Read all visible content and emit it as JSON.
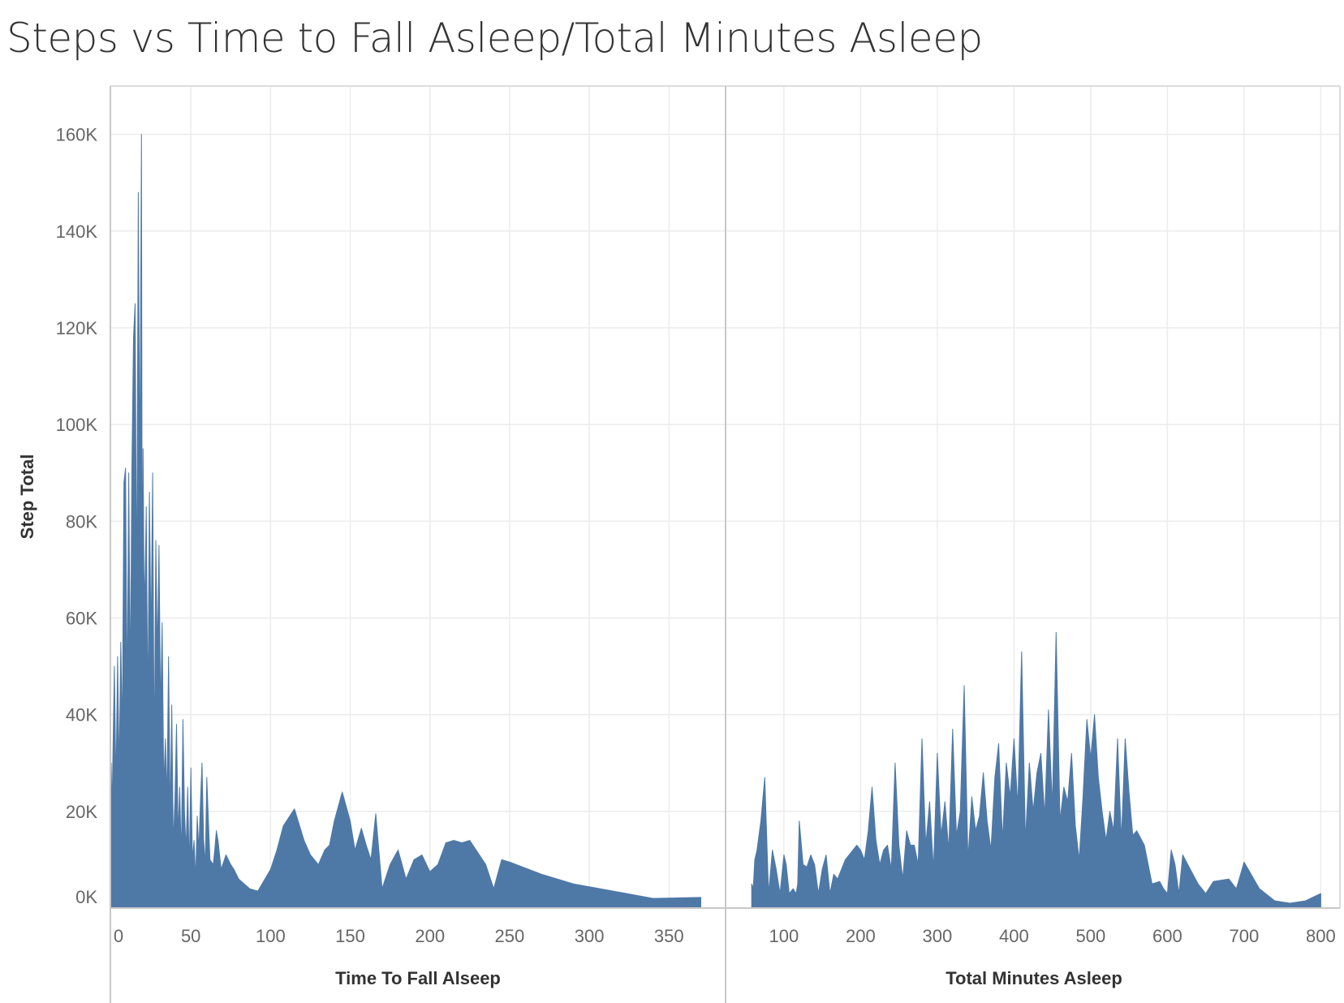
{
  "title": "Steps vs Time to Fall Asleep/Total Minutes Asleep",
  "chart_data": [
    {
      "type": "area",
      "name": "time-to-fall-asleep",
      "xlabel": "Time To Fall Alseep",
      "ylabel": "Step Total",
      "xlim": [
        0,
        385
      ],
      "ylim": [
        0,
        170000
      ],
      "x_ticks": [
        0,
        50,
        100,
        150,
        200,
        250,
        300,
        350
      ],
      "x_tick_labels": [
        "0",
        "50",
        "100",
        "150",
        "200",
        "250",
        "300",
        "350"
      ],
      "y_ticks": [
        0,
        20000,
        40000,
        60000,
        80000,
        100000,
        120000,
        140000,
        160000
      ],
      "y_tick_labels": [
        "0K",
        "20K",
        "40K",
        "60K",
        "80K",
        "100K",
        "120K",
        "140K",
        "160K"
      ],
      "grid": true,
      "color": "#4e79a7",
      "series": [
        {
          "x": [
            0,
            0.5,
            2,
            3,
            4,
            5,
            6,
            7,
            8,
            9,
            10,
            11,
            12,
            13,
            14,
            15,
            16,
            17,
            18,
            19,
            19.5,
            20,
            20.5,
            21,
            22,
            23,
            24,
            25,
            26,
            27,
            28,
            29,
            30,
            31,
            32,
            33,
            34,
            35,
            36,
            37,
            38,
            39,
            40,
            41,
            42,
            43,
            44,
            45,
            46,
            47,
            48,
            49,
            50,
            51,
            52,
            53,
            54,
            55,
            56,
            57,
            58,
            59,
            60,
            61,
            62,
            64,
            65,
            66,
            67,
            69,
            72,
            75,
            77,
            80,
            87,
            92,
            100,
            104,
            108,
            115,
            121,
            125,
            130,
            134,
            137,
            140,
            145,
            150,
            153,
            157,
            160,
            163,
            166,
            170,
            175,
            180,
            185,
            190,
            195,
            200,
            205,
            210,
            215,
            220,
            225,
            235,
            240,
            245,
            250,
            270,
            290,
            315,
            340,
            370
          ],
          "y": [
            30000,
            20000,
            50000,
            25000,
            52000,
            28000,
            55000,
            36000,
            88000,
            91000,
            42000,
            90000,
            46000,
            91000,
            118000,
            125000,
            62000,
            148000,
            88000,
            160000,
            60000,
            95000,
            70000,
            62000,
            83000,
            40000,
            86000,
            55000,
            90000,
            30000,
            76000,
            52000,
            75000,
            40000,
            59000,
            25000,
            35000,
            22000,
            52000,
            18000,
            42000,
            13000,
            22000,
            38000,
            15000,
            25000,
            10000,
            39000,
            20000,
            12000,
            25000,
            8000,
            29000,
            10000,
            14000,
            6000,
            19000,
            12000,
            22000,
            30000,
            14000,
            9000,
            27000,
            18000,
            10000,
            9000,
            12000,
            16000,
            14000,
            8000,
            11000,
            9000,
            8000,
            6000,
            4000,
            3500,
            8000,
            12000,
            17000,
            20500,
            14000,
            11000,
            9000,
            12000,
            13000,
            18000,
            24000,
            18000,
            12000,
            16500,
            13000,
            10000,
            19500,
            4000,
            9000,
            12000,
            6000,
            10000,
            11000,
            7500,
            9000,
            13500,
            14000,
            13500,
            14000,
            9000,
            4000,
            10000,
            9500,
            7000,
            5000,
            3500,
            2000,
            2200
          ]
        }
      ]
    },
    {
      "type": "area",
      "name": "total-minutes-asleep",
      "xlabel": "Total Minutes Asleep",
      "ylabel": "",
      "xlim": [
        25,
        825
      ],
      "ylim": [
        0,
        170000
      ],
      "x_ticks": [
        100,
        200,
        300,
        400,
        500,
        600,
        700,
        800
      ],
      "x_tick_labels": [
        "100",
        "200",
        "300",
        "400",
        "500",
        "600",
        "700",
        "800"
      ],
      "grid": true,
      "color": "#4e79a7",
      "series": [
        {
          "x": [
            58,
            60,
            62,
            65,
            70,
            75,
            80,
            85,
            90,
            95,
            100,
            103,
            107,
            112,
            116,
            118,
            120,
            125,
            130,
            135,
            140,
            145,
            150,
            155,
            160,
            165,
            170,
            175,
            180,
            185,
            190,
            195,
            200,
            205,
            210,
            215,
            220,
            225,
            230,
            235,
            240,
            245,
            250,
            255,
            260,
            265,
            270,
            275,
            280,
            285,
            290,
            295,
            300,
            305,
            310,
            315,
            320,
            325,
            330,
            335,
            340,
            345,
            350,
            355,
            360,
            365,
            370,
            375,
            380,
            385,
            390,
            395,
            400,
            405,
            410,
            415,
            420,
            425,
            430,
            435,
            440,
            445,
            450,
            455,
            460,
            465,
            470,
            475,
            480,
            485,
            490,
            495,
            500,
            505,
            510,
            515,
            520,
            525,
            530,
            535,
            540,
            545,
            550,
            555,
            560,
            570,
            580,
            590,
            595,
            600,
            605,
            610,
            615,
            620,
            630,
            640,
            650,
            660,
            680,
            690,
            700,
            720,
            740,
            760,
            780,
            800
          ],
          "y": [
            5000,
            4000,
            10000,
            12000,
            18000,
            27000,
            3000,
            12000,
            8000,
            3000,
            11000,
            9000,
            3000,
            4000,
            3000,
            5000,
            18000,
            9000,
            8500,
            11000,
            9000,
            3000,
            8000,
            11000,
            3000,
            7000,
            6000,
            8000,
            10000,
            11000,
            12000,
            13000,
            12000,
            10000,
            16000,
            25000,
            14000,
            9000,
            12000,
            13000,
            8000,
            30000,
            13000,
            6000,
            16000,
            13000,
            13000,
            9000,
            35000,
            13000,
            22000,
            8000,
            32000,
            15000,
            22000,
            12000,
            37000,
            15000,
            20000,
            46000,
            10000,
            23000,
            16000,
            19000,
            28000,
            18000,
            12000,
            27000,
            34000,
            14000,
            30000,
            23000,
            35000,
            21000,
            53000,
            14000,
            30000,
            20000,
            28000,
            32000,
            19000,
            41000,
            21000,
            57000,
            18000,
            25000,
            22000,
            32000,
            17000,
            10000,
            23000,
            39000,
            31000,
            40000,
            27000,
            20000,
            14000,
            20000,
            16000,
            35000,
            14000,
            35000,
            24000,
            15000,
            16000,
            13000,
            5000,
            5500,
            4000,
            3000,
            12000,
            9000,
            3000,
            11000,
            8000,
            5000,
            3000,
            5500,
            6000,
            4000,
            9500,
            4000,
            1500,
            1000,
            1500,
            3000
          ]
        }
      ]
    }
  ]
}
